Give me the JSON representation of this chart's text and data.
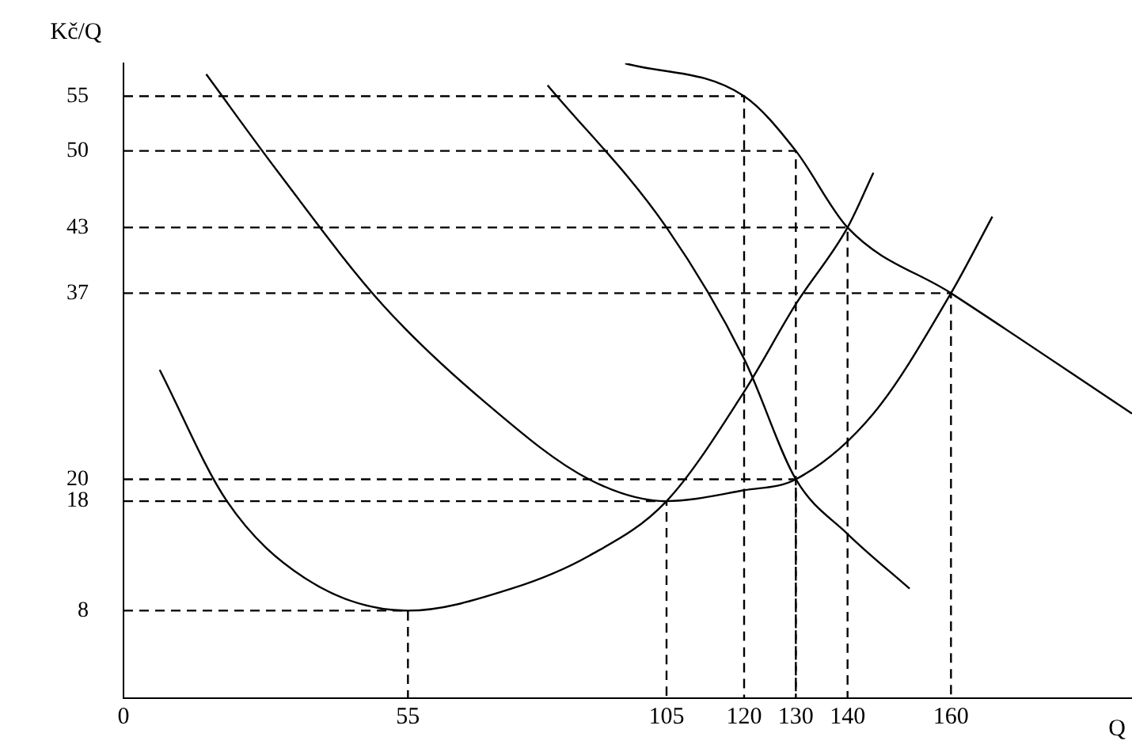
{
  "chart_data": {
    "type": "line",
    "xlabel": "Q",
    "ylabel": "Kč/Q",
    "xlim": [
      0,
      195
    ],
    "ylim": [
      0,
      58
    ],
    "xticks": [
      0,
      55,
      105,
      120,
      130,
      140,
      160
    ],
    "yticks": [
      8,
      18,
      20,
      37,
      43,
      50,
      55
    ],
    "grid": false,
    "legend": false,
    "marker": "none",
    "line_style": "solid",
    "series": [
      {
        "color": "#000000",
        "x": [
          7,
          20,
          35,
          55,
          75,
          90,
          105,
          120,
          130,
          140,
          145
        ],
        "values": [
          30,
          18,
          11,
          8,
          10,
          13,
          18,
          28,
          36,
          43,
          48
        ]
      },
      {
        "color": "#000000",
        "x": [
          16,
          30,
          50,
          70,
          90,
          105,
          120,
          130,
          145,
          160,
          168
        ],
        "values": [
          57,
          48,
          36,
          27,
          20,
          18,
          19,
          20,
          26,
          37,
          44
        ]
      },
      {
        "color": "#000000",
        "x": [
          82,
          105,
          120,
          130,
          140,
          152
        ],
        "values": [
          56,
          43,
          31,
          20,
          15,
          10
        ]
      },
      {
        "color": "#000000",
        "x": [
          97,
          120,
          130,
          140,
          160,
          195
        ],
        "values": [
          58,
          55,
          50,
          43,
          37,
          26
        ]
      },
      {
        "color": "#000000",
        "line_style": "dashed",
        "x": [
          0,
          120,
          120
        ],
        "values": [
          55,
          55,
          0
        ]
      },
      {
        "color": "#000000",
        "line_style": "dashed",
        "x": [
          0,
          130,
          130
        ],
        "values": [
          50,
          50,
          0
        ]
      },
      {
        "color": "#000000",
        "line_style": "dashed",
        "x": [
          0,
          140,
          140
        ],
        "values": [
          43,
          43,
          0
        ]
      },
      {
        "color": "#000000",
        "line_style": "dashed",
        "x": [
          0,
          160,
          160
        ],
        "values": [
          37,
          37,
          0
        ]
      },
      {
        "color": "#000000",
        "line_style": "dashed",
        "x": [
          0,
          130,
          130
        ],
        "values": [
          20,
          20,
          0
        ]
      },
      {
        "color": "#000000",
        "line_style": "dashed",
        "x": [
          0,
          105,
          105
        ],
        "values": [
          18,
          18,
          0
        ]
      },
      {
        "color": "#000000",
        "line_style": "dashed",
        "x": [
          0,
          55,
          55
        ],
        "values": [
          8,
          8,
          0
        ]
      }
    ]
  }
}
